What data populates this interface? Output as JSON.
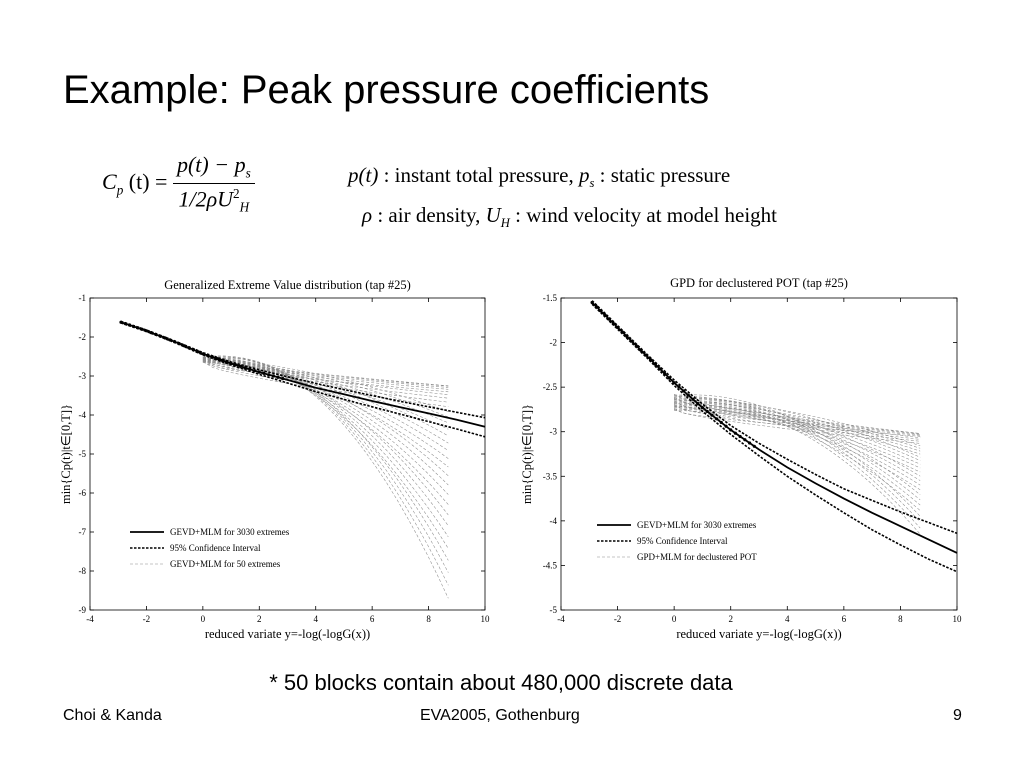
{
  "slide": {
    "title": "Example: Peak pressure coefficients",
    "note": "* 50 blocks contain about 480,000 discrete data",
    "footer_left": "Choi & Kanda",
    "footer_center": "EVA2005, Gothenburg",
    "footer_right": "9"
  },
  "equation": {
    "lhs_symbol": "C",
    "lhs_sub": "p",
    "lhs_arg": "(t) =",
    "numerator": "p(t) − p",
    "numerator_sub": "s",
    "denominator": "1/2ρU",
    "denominator_sup": "2",
    "denominator_sub": "H",
    "def1_symbol": "p(t)",
    "def1_text": ": instant total pressure,",
    "def2_symbol": "p",
    "def2_sub": "s",
    "def2_text": ": static pressure",
    "def3_symbol": "ρ",
    "def3_text": ": air density,",
    "def4_symbol": "U",
    "def4_sub": "H",
    "def4_text": ": wind velocity at model height"
  },
  "chart_data": [
    {
      "type": "line",
      "title": "Generalized Extreme Value distribution (tap #25)",
      "xlabel": "reduced variate y=-log(-logG(x))",
      "ylabel": "min{Cp(t)|t∈[0,T]}",
      "xlim": [
        -4,
        10
      ],
      "ylim": [
        -9,
        -1
      ],
      "x_ticks": [
        "-4",
        "-2",
        "0",
        "2",
        "4",
        "6",
        "8",
        "10"
      ],
      "y_ticks": [
        "-1",
        "-2",
        "-3",
        "-4",
        "-5",
        "-6",
        "-7",
        "-8",
        "-9"
      ],
      "grid": false,
      "legend_position": "bottom-left",
      "series": [
        {
          "name": "GEVD+MLM for 3030 extremes",
          "style": "solid",
          "x": [
            -2.9,
            -2,
            -1,
            0,
            1,
            2,
            3,
            4,
            5,
            6,
            7,
            8,
            9,
            10
          ],
          "y": [
            -1.62,
            -1.84,
            -2.12,
            -2.43,
            -2.68,
            -2.9,
            -3.1,
            -3.3,
            -3.47,
            -3.64,
            -3.8,
            -3.96,
            -4.12,
            -4.3
          ]
        },
        {
          "name": "95% Confidence Interval",
          "style": "dotted",
          "x": [
            -2.9,
            -2,
            -1,
            0,
            1,
            2,
            3,
            4,
            5,
            6,
            7,
            8,
            9,
            10
          ],
          "y": [
            -1.6,
            -1.82,
            -2.1,
            -2.4,
            -2.64,
            -2.84,
            -3.02,
            -3.19,
            -3.35,
            -3.5,
            -3.65,
            -3.79,
            -3.93,
            -4.07
          ]
        },
        {
          "name": "95% Confidence Interval (lower)",
          "style": "dotted",
          "x": [
            -2.9,
            -2,
            -1,
            0,
            1,
            2,
            3,
            4,
            5,
            6,
            7,
            8,
            9,
            10
          ],
          "y": [
            -1.64,
            -1.86,
            -2.14,
            -2.46,
            -2.72,
            -2.96,
            -3.18,
            -3.4,
            -3.6,
            -3.79,
            -3.98,
            -4.17,
            -4.36,
            -4.56
          ]
        },
        {
          "name": "GEVD+MLM for 50 extremes",
          "style": "thin-dashed",
          "count": 30,
          "x_range": [
            0,
            8.7
          ],
          "y_start_range": [
            -2.5,
            -2.65
          ],
          "y_end_range": [
            -3.25,
            -8.7
          ]
        }
      ]
    },
    {
      "type": "line",
      "title": "GPD for declustered POT (tap #25)",
      "xlabel": "reduced variate y=-log(-logG(x))",
      "ylabel": "min{Cp(t)|t∈[0,T]}",
      "xlim": [
        -4,
        10
      ],
      "ylim": [
        -5,
        -1.5
      ],
      "x_ticks": [
        "-4",
        "-2",
        "0",
        "2",
        "4",
        "6",
        "8",
        "10"
      ],
      "y_ticks": [
        "-1.5",
        "-2",
        "-2.5",
        "-3",
        "-3.5",
        "-4",
        "-4.5",
        "-5"
      ],
      "grid": false,
      "legend_position": "bottom-left",
      "series": [
        {
          "name": "GEVD+MLM for 3030 extremes",
          "style": "solid",
          "x": [
            -2.9,
            -2,
            -1,
            0,
            1,
            2,
            3,
            4,
            5,
            6,
            7,
            8,
            9,
            10
          ],
          "y": [
            -1.55,
            -1.83,
            -2.14,
            -2.45,
            -2.73,
            -2.98,
            -3.2,
            -3.4,
            -3.58,
            -3.75,
            -3.91,
            -4.06,
            -4.21,
            -4.36
          ]
        },
        {
          "name": "95% Confidence Interval",
          "style": "dotted",
          "x": [
            -2.9,
            -2,
            -1,
            0,
            1,
            2,
            3,
            4,
            5,
            6,
            7,
            8,
            9,
            10
          ],
          "y": [
            -1.53,
            -1.81,
            -2.12,
            -2.42,
            -2.69,
            -2.93,
            -3.13,
            -3.31,
            -3.48,
            -3.64,
            -3.77,
            -3.9,
            -4.02,
            -4.14
          ]
        },
        {
          "name": "95% Confidence Interval (lower)",
          "style": "dotted",
          "x": [
            -2.9,
            -2,
            -1,
            0,
            1,
            2,
            3,
            4,
            5,
            6,
            7,
            8,
            9,
            10
          ],
          "y": [
            -1.57,
            -1.85,
            -2.16,
            -2.48,
            -2.77,
            -3.03,
            -3.27,
            -3.5,
            -3.71,
            -3.91,
            -4.1,
            -4.27,
            -4.43,
            -4.57
          ]
        },
        {
          "name": "GPD+MLM for declustered POT",
          "style": "thin-dashed",
          "count": 30,
          "x_range": [
            0,
            8.7
          ],
          "y_start_range": [
            -2.58,
            -2.76
          ],
          "y_end_range": [
            -3.02,
            -4.15
          ]
        }
      ]
    }
  ]
}
